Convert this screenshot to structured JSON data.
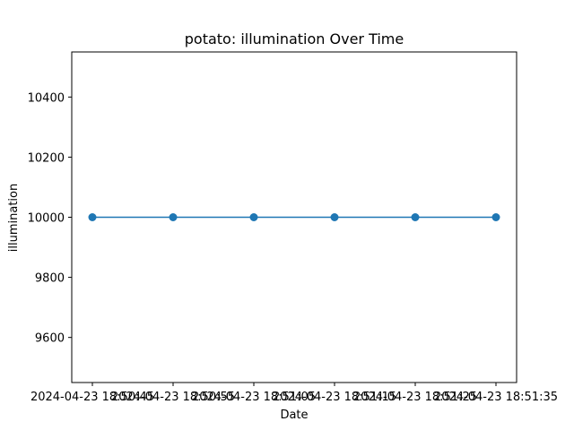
{
  "chart_data": {
    "type": "line",
    "title": "potato: illumination Over Time",
    "xlabel": "Date",
    "ylabel": "illumination",
    "x": [
      "2024-04-23 18:50:45",
      "2024-04-23 18:50:55",
      "2024-04-23 18:51:05",
      "2024-04-23 18:51:15",
      "2024-04-23 18:51:25",
      "2024-04-23 18:51:35"
    ],
    "series": [
      {
        "values": [
          10000,
          10000,
          10000,
          10000,
          10000,
          10000
        ],
        "color": "#1f77b4"
      }
    ],
    "yticks": [
      9600,
      9800,
      10000,
      10200,
      10400
    ],
    "ylim": [
      9450,
      10550
    ],
    "grid": false,
    "legend": "none"
  }
}
